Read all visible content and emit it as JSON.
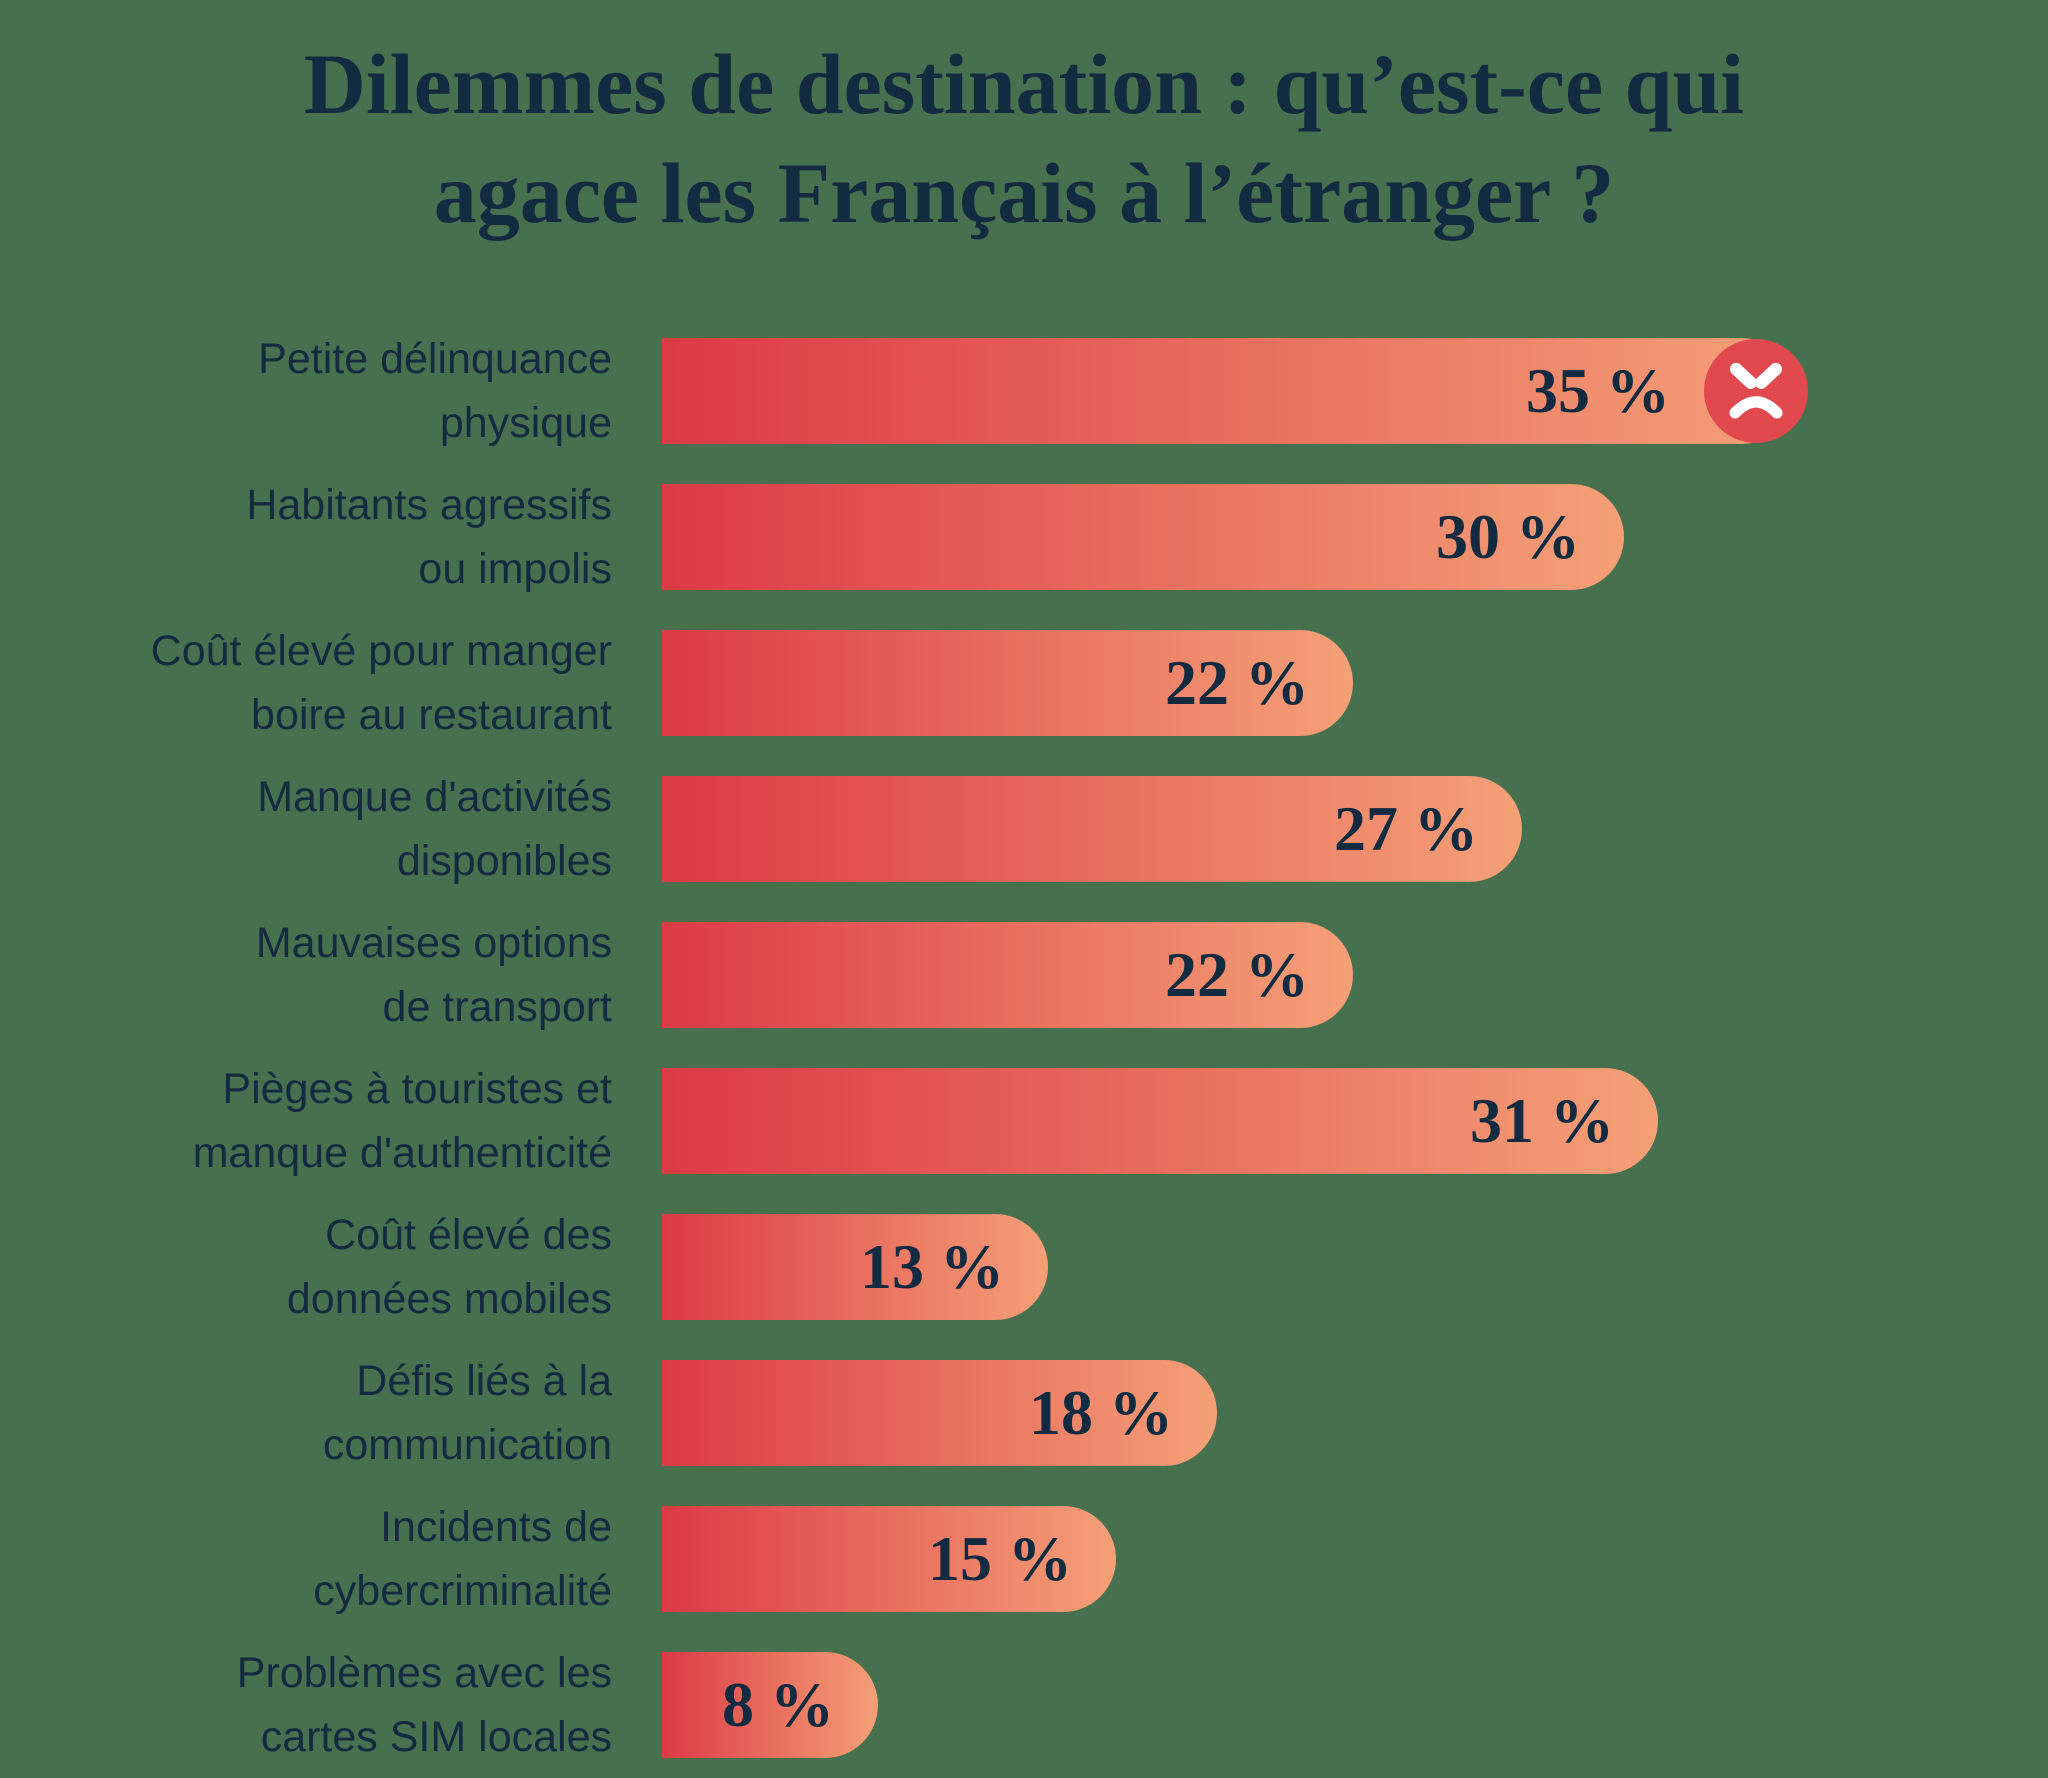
{
  "title": {
    "text": "Dilemmes de destination : qu’est-ce qui agace les Français à l’étranger ?",
    "line1": "Dilemmes de destination : qu’est-ce qui",
    "line2": "agace les Français à l’étranger ?"
  },
  "colors": {
    "background": "#47714E",
    "ink": "#132B40",
    "bar_start": "#DC3A45",
    "bar_end": "#F5A077",
    "icon_circle": "#E1494F",
    "icon_face": "#FFFFFF"
  },
  "chart_data": {
    "type": "bar",
    "orientation": "horizontal",
    "title": "Dilemmes de destination : qu’est-ce qui agace les Français à l’étranger ?",
    "xlabel": "",
    "ylabel": "",
    "unit": "%",
    "xlim": [
      0,
      35
    ],
    "grid": false,
    "legend": "none",
    "categories": [
      "Petite délinquance physique",
      "Habitants agressifs ou impolis",
      "Coût élevé pour manger boire au restaurant",
      "Manque d'activités disponibles",
      "Mauvaises options de transport",
      "Pièges à touristes et manque d'authenticité",
      "Coût élevé des données mobiles",
      "Défis liés à la communication",
      "Incidents de cybercriminalité",
      "Problèmes avec les cartes SIM locales"
    ],
    "values": [
      35,
      30,
      22,
      27,
      22,
      31,
      13,
      18,
      15,
      8
    ],
    "bars": [
      {
        "label": "Petite délinquance physique",
        "label_lines": [
          "Petite délinquance",
          "physique"
        ],
        "value": 35,
        "display": "35 %",
        "icon": "angry-face"
      },
      {
        "label": "Habitants agressifs ou impolis",
        "label_lines": [
          "Habitants agressifs",
          "ou impolis"
        ],
        "value": 30,
        "display": "30 %",
        "icon": ""
      },
      {
        "label": "Coût élevé pour manger boire au restaurant",
        "label_lines": [
          "Coût élevé pour manger",
          "boire au restaurant"
        ],
        "value": 22,
        "display": "22 %",
        "icon": ""
      },
      {
        "label": "Manque d'activités disponibles",
        "label_lines": [
          "Manque d'activités",
          "disponibles"
        ],
        "value": 27,
        "display": "27 %",
        "icon": ""
      },
      {
        "label": "Mauvaises options de transport",
        "label_lines": [
          "Mauvaises options",
          "de transport"
        ],
        "value": 22,
        "display": "22 %",
        "icon": ""
      },
      {
        "label": "Pièges à touristes et manque d'authenticité",
        "label_lines": [
          "Pièges à touristes et",
          "manque d'authenticité"
        ],
        "value": 31,
        "display": "31 %",
        "icon": ""
      },
      {
        "label": "Coût élevé des données mobiles",
        "label_lines": [
          "Coût élevé des",
          "données mobiles"
        ],
        "value": 13,
        "display": "13 %",
        "icon": ""
      },
      {
        "label": "Défis liés à la communication",
        "label_lines": [
          "Défis liés à la",
          "communication"
        ],
        "value": 18,
        "display": "18 %",
        "icon": ""
      },
      {
        "label": "Incidents de cybercriminalité",
        "label_lines": [
          "Incidents de",
          "cybercriminalité"
        ],
        "value": 15,
        "display": "15 %",
        "icon": ""
      },
      {
        "label": "Problèmes avec les cartes SIM locales",
        "label_lines": [
          "Problèmes avec les",
          "cartes SIM locales"
        ],
        "value": 8,
        "display": "8 %",
        "icon": ""
      }
    ]
  }
}
